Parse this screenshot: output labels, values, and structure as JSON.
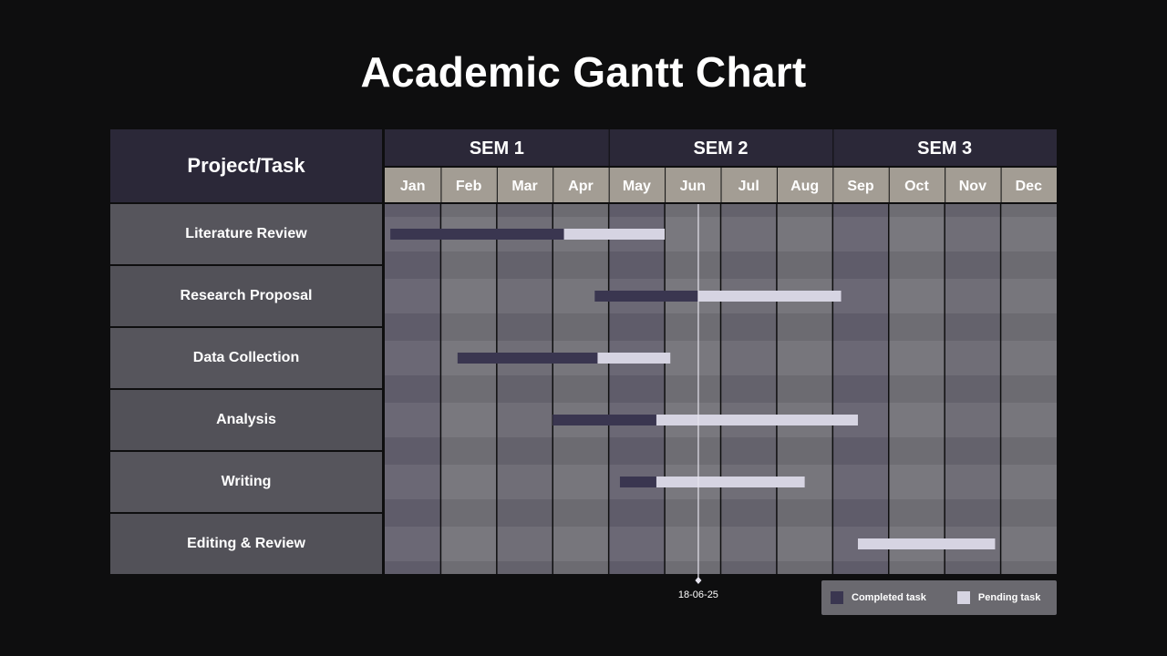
{
  "title": "Academic Gantt Chart",
  "header_label": "Project/Task",
  "colors": {
    "background": "#0e0e0f",
    "header_dark": "#2b2838",
    "month_header": "#a39d94",
    "completed": "#3a3650",
    "pending": "#d6d4e2",
    "task_cell": "#56555c"
  },
  "chart_data": {
    "type": "gantt",
    "title": "Academic Gantt Chart",
    "semesters": [
      {
        "label": "SEM 1",
        "months": [
          "Jan",
          "Feb",
          "Mar",
          "Apr"
        ]
      },
      {
        "label": "SEM 2",
        "months": [
          "May",
          "Jun",
          "Jul",
          "Aug"
        ]
      },
      {
        "label": "SEM 3",
        "months": [
          "Sep",
          "Oct",
          "Nov",
          "Dec"
        ]
      }
    ],
    "months": [
      "Jan",
      "Feb",
      "Mar",
      "Apr",
      "May",
      "Jun",
      "Jul",
      "Aug",
      "Sep",
      "Oct",
      "Nov",
      "Dec"
    ],
    "x_unit": "month",
    "x_range": [
      0,
      12
    ],
    "tasks": [
      {
        "name": "Literature Review",
        "start": 0.1,
        "completed_until": 3.2,
        "end": 5.0
      },
      {
        "name": "Research Proposal",
        "start": 3.75,
        "completed_until": 5.6,
        "end": 8.15
      },
      {
        "name": "Data Collection",
        "start": 1.3,
        "completed_until": 3.8,
        "end": 5.1
      },
      {
        "name": "Analysis",
        "start": 3.0,
        "completed_until": 4.85,
        "end": 8.45
      },
      {
        "name": "Writing",
        "start": 4.2,
        "completed_until": 4.85,
        "end": 7.5
      },
      {
        "name": "Editing & Review",
        "start": 8.45,
        "completed_until": 8.45,
        "end": 10.9
      }
    ],
    "today": {
      "label": "18-06-25",
      "value": 5.6
    },
    "legend": [
      {
        "key": "completed",
        "label": "Completed task"
      },
      {
        "key": "pending",
        "label": "Pending task"
      }
    ]
  }
}
